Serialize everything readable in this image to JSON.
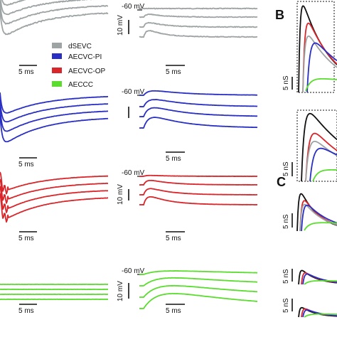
{
  "legend": [
    {
      "label": "dSEVC",
      "color": "#9ea3a4"
    },
    {
      "label": "AECVC-PI",
      "color": "#2a2fc4"
    },
    {
      "label": "AECVC-OP",
      "color": "#d9262b"
    },
    {
      "label": "AECCC",
      "color": "#5bdd2f"
    }
  ],
  "panel_labels": {
    "b": "B",
    "c": "C"
  },
  "scale_bars": {
    "time": "5 ms",
    "voltage": "10 mV",
    "conductance": "5 nS",
    "holding": "-60 mV"
  },
  "chart_data": {
    "type": "line",
    "title": "",
    "rows": [
      {
        "name": "dSEVC",
        "color": "#9ea3a4",
        "current_traces": 4,
        "voltage_traces": 4
      },
      {
        "name": "AECVC-PI",
        "color": "#2a2fc4",
        "current_traces": 4,
        "voltage_traces": 4
      },
      {
        "name": "AECVC-OP",
        "color": "#d9262b",
        "current_traces": 4,
        "voltage_traces": 4
      },
      {
        "name": "AECCC",
        "color": "#5bdd2f",
        "current_traces": 4,
        "voltage_traces": 4
      }
    ],
    "conductance_colors": [
      "#111111",
      "#d9262b",
      "#9ea3a4",
      "#2a2fc4",
      "#5bdd2f"
    ]
  }
}
